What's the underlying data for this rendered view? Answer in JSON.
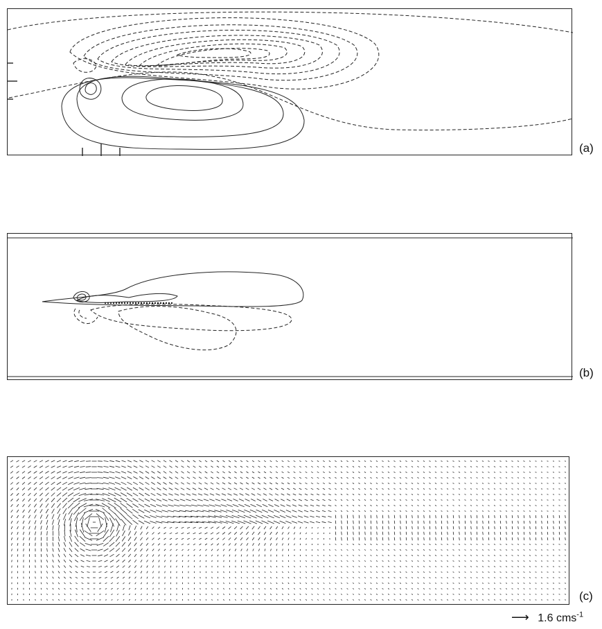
{
  "panels": {
    "a": {
      "label": "(a)"
    },
    "b": {
      "label": "(b)"
    },
    "c": {
      "label": "(c)"
    }
  },
  "scale_arrow": {
    "arrow": "⟶",
    "value": "1.6 cms",
    "exponent": "-1"
  },
  "colors": {
    "line": "#222222",
    "background": "#ffffff"
  }
}
